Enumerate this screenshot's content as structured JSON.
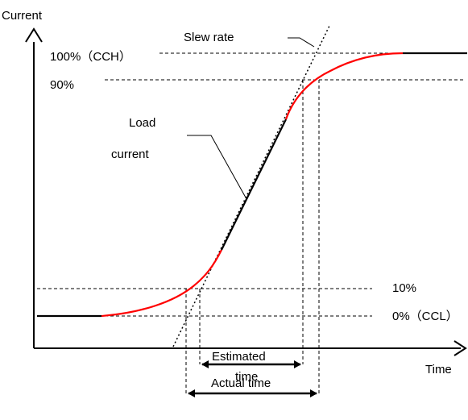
{
  "labels": {
    "y_axis": "Current",
    "x_axis": "Time",
    "slew_rate": "Slew rate",
    "load_current_line1": "Load",
    "load_current_line2": "current",
    "level_100": "100%（CCH）",
    "level_90": "90%",
    "level_10": "10%",
    "level_0": "0%（CCL）",
    "estimated_line1": "Estimated",
    "estimated_line2": "time",
    "actual_time": "Actual time"
  },
  "colors": {
    "curve_transition": "#ff0000",
    "curve_linear": "#000000",
    "axes": "#000000"
  }
}
